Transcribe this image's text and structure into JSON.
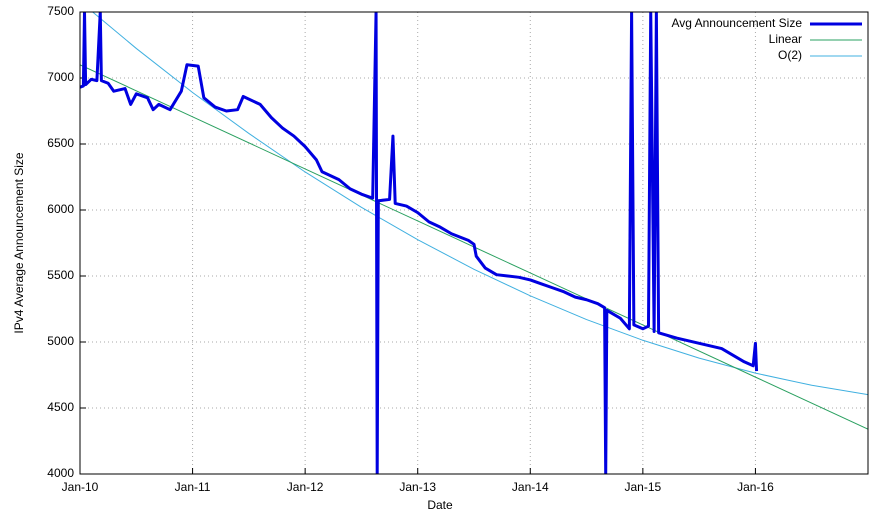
{
  "chart_data": {
    "type": "line",
    "xlabel": "Date",
    "ylabel": "IPv4 Average Announcement Size",
    "xlim": [
      2010,
      2017
    ],
    "ylim": [
      4000,
      7500
    ],
    "xticks": [
      {
        "value": 2010,
        "label": "Jan-10"
      },
      {
        "value": 2011,
        "label": "Jan-11"
      },
      {
        "value": 2012,
        "label": "Jan-12"
      },
      {
        "value": 2013,
        "label": "Jan-13"
      },
      {
        "value": 2014,
        "label": "Jan-14"
      },
      {
        "value": 2015,
        "label": "Jan-15"
      },
      {
        "value": 2016,
        "label": "Jan-16"
      }
    ],
    "yticks": [
      4000,
      4500,
      5000,
      5500,
      6000,
      6500,
      7000,
      7500
    ],
    "grid": true,
    "legend": "top-right",
    "series": [
      {
        "name": "Avg Announcement Size",
        "color": "#0000e0",
        "width": 3,
        "x": [
          2010.0,
          2010.03,
          2010.04,
          2010.05,
          2010.1,
          2010.15,
          2010.18,
          2010.19,
          2010.25,
          2010.3,
          2010.4,
          2010.45,
          2010.5,
          2010.6,
          2010.65,
          2010.7,
          2010.8,
          2010.9,
          2010.95,
          2011.05,
          2011.1,
          2011.2,
          2011.3,
          2011.4,
          2011.45,
          2011.6,
          2011.7,
          2011.8,
          2011.9,
          2012.0,
          2012.1,
          2012.15,
          2012.3,
          2012.4,
          2012.5,
          2012.6,
          2012.63,
          2012.64,
          2012.65,
          2012.75,
          2012.78,
          2012.8,
          2012.9,
          2013.0,
          2013.1,
          2013.2,
          2013.3,
          2013.45,
          2013.5,
          2013.52,
          2013.6,
          2013.7,
          2013.8,
          2013.9,
          2014.0,
          2014.1,
          2014.2,
          2014.3,
          2014.4,
          2014.5,
          2014.6,
          2014.66,
          2014.67,
          2014.68,
          2014.8,
          2014.88,
          2014.9,
          2014.92,
          2015.0,
          2015.05,
          2015.07,
          2015.1,
          2015.12,
          2015.14,
          2015.3,
          2015.5,
          2015.7,
          2015.8,
          2015.9,
          2015.98,
          2016.0,
          2016.01
        ],
        "values": [
          6930,
          6940,
          7500,
          6950,
          6990,
          6980,
          7500,
          6980,
          6960,
          6900,
          6920,
          6800,
          6880,
          6850,
          6760,
          6800,
          6760,
          6900,
          7100,
          7090,
          6850,
          6780,
          6750,
          6760,
          6860,
          6800,
          6700,
          6620,
          6560,
          6480,
          6380,
          6290,
          6230,
          6160,
          6120,
          6090,
          7500,
          4000,
          6070,
          6080,
          6560,
          6050,
          6030,
          5980,
          5910,
          5870,
          5820,
          5770,
          5740,
          5650,
          5560,
          5510,
          5500,
          5490,
          5470,
          5440,
          5410,
          5380,
          5340,
          5320,
          5290,
          5260,
          4000,
          5240,
          5180,
          5100,
          7500,
          5130,
          5100,
          5120,
          7500,
          5080,
          7500,
          5070,
          5030,
          4990,
          4950,
          4900,
          4850,
          4820,
          4990,
          4780
        ]
      },
      {
        "name": "Linear",
        "color": "#2aa060",
        "width": 1,
        "x": [
          2010,
          2011,
          2012,
          2013,
          2014,
          2015,
          2016,
          2017
        ],
        "values": [
          7100,
          6706,
          6311,
          5917,
          5523,
          5129,
          4734,
          4340
        ]
      },
      {
        "name": "O(2)",
        "color": "#40b0e0",
        "width": 1,
        "x": [
          2010,
          2010.5,
          2011,
          2011.5,
          2012,
          2012.5,
          2013,
          2013.5,
          2014,
          2014.5,
          2015,
          2015.5,
          2016,
          2016.5,
          2017
        ],
        "values": [
          7580,
          7224,
          6890,
          6580,
          6288,
          6020,
          5775,
          5551,
          5350,
          5170,
          5013,
          4878,
          4764,
          4672,
          4601
        ]
      }
    ]
  }
}
